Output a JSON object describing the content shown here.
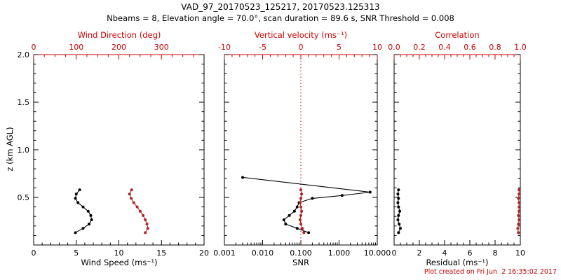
{
  "header": {
    "title": "VAD_97_20170523_125217, 20170523.125313",
    "subtitle": "Nbeams = 8, Elevation angle = 70.0°, scan duration = 89.6 s, SNR Threshold = 0.008"
  },
  "footer": {
    "created_text": "Plot created on Fri Jun  2 16:35:02 2017"
  },
  "colors": {
    "background": "#ffffff",
    "axis": "#000000",
    "secondary_axis": "#cc0000",
    "series_black": "#000000",
    "series_red": "#b22222"
  },
  "chart_data": [
    {
      "id": "wind",
      "type": "line",
      "y_axis": {
        "label": "z (km AGL)",
        "min": 0,
        "max": 2.0,
        "minor_step": 0.1,
        "tick_values": [
          0.5,
          1.0,
          1.5,
          2.0
        ],
        "tick_labels": [
          "0.5",
          "1.0",
          "1.5",
          "2.0"
        ],
        "show_tick_labels": true
      },
      "x_bottom": {
        "label": "Wind Speed (ms⁻¹)",
        "scale": "linear",
        "min": 0,
        "max": 20,
        "minor_step": 1,
        "tick_values": [
          0,
          5,
          10,
          15,
          20
        ],
        "tick_labels": [
          "0",
          "5",
          "10",
          "15",
          "20"
        ]
      },
      "x_top": {
        "label": "Wind Direction (deg)",
        "scale": "linear",
        "min": 0,
        "max": 400,
        "minor_step": 25,
        "color": "#cc0000",
        "tick_values": [
          0,
          100,
          200,
          300
        ],
        "tick_labels": [
          "0",
          "100",
          "200",
          "300"
        ]
      },
      "series": [
        {
          "name": "wind-speed",
          "axis": "bottom",
          "color": "#000000",
          "z": [
            0.13,
            0.175,
            0.22,
            0.265,
            0.31,
            0.355,
            0.4,
            0.445,
            0.49,
            0.535,
            0.58
          ],
          "values": [
            4.9,
            5.8,
            6.5,
            6.8,
            6.7,
            6.4,
            5.8,
            5.2,
            4.9,
            5.0,
            5.4
          ]
        },
        {
          "name": "wind-direction",
          "axis": "top",
          "color": "#b22222",
          "z": [
            0.13,
            0.175,
            0.22,
            0.265,
            0.31,
            0.355,
            0.4,
            0.445,
            0.49,
            0.535,
            0.58
          ],
          "values": [
            262,
            268,
            266,
            262,
            257,
            250,
            243,
            235,
            229,
            225,
            230
          ]
        }
      ]
    },
    {
      "id": "snr",
      "type": "line",
      "y_axis": {
        "label": "",
        "min": 0,
        "max": 2.0,
        "minor_step": 0.1,
        "tick_values": [
          0.5,
          1.0,
          1.5,
          2.0
        ],
        "tick_labels": [
          "0.5",
          "1.0",
          "1.5",
          "2.0"
        ],
        "show_tick_labels": false
      },
      "x_bottom": {
        "label": "SNR",
        "scale": "log",
        "min": 0.001,
        "max": 10,
        "tick_values": [
          0.001,
          0.01,
          0.1,
          1,
          10
        ],
        "tick_labels": [
          "0.001",
          "0.010",
          "0.100",
          "1.000",
          "10.000"
        ]
      },
      "x_top": {
        "label": "Vertical velocity (ms⁻¹)",
        "scale": "linear",
        "min": -10,
        "max": 10,
        "minor_step": 1,
        "color": "#cc0000",
        "tick_values": [
          -10,
          -5,
          0,
          5,
          10
        ],
        "tick_labels": [
          "-10",
          "-5",
          "0",
          "5",
          "10"
        ]
      },
      "reference_line": {
        "axis": "top",
        "value": 0,
        "color": "#cc0000",
        "style": "dotted"
      },
      "series": [
        {
          "name": "snr",
          "axis": "bottom",
          "color": "#000000",
          "z": [
            0.13,
            0.175,
            0.22,
            0.265,
            0.31,
            0.355,
            0.4,
            0.445,
            0.49,
            0.52,
            0.555,
            0.71
          ],
          "values": [
            0.16,
            0.08,
            0.04,
            0.036,
            0.05,
            0.068,
            0.08,
            0.09,
            0.2,
            1.2,
            6.5,
            0.003
          ]
        },
        {
          "name": "vertical-velocity",
          "axis": "top",
          "color": "#b22222",
          "z": [
            0.13,
            0.175,
            0.22,
            0.265,
            0.31,
            0.355,
            0.4,
            0.445,
            0.49,
            0.535,
            0.58
          ],
          "values": [
            0.4,
            0.2,
            0.0,
            -0.1,
            0.0,
            0.1,
            0.0,
            -0.1,
            0.0,
            0.1,
            0.0
          ]
        }
      ]
    },
    {
      "id": "residual",
      "type": "line",
      "y_axis": {
        "label": "",
        "min": 0,
        "max": 2.0,
        "minor_step": 0.1,
        "tick_values": [
          0.5,
          1.0,
          1.5,
          2.0
        ],
        "tick_labels": [
          "0.5",
          "1.0",
          "1.5",
          "2.0"
        ],
        "show_tick_labels": false
      },
      "x_bottom": {
        "label": "Residual (ms⁻¹)",
        "scale": "linear",
        "min": 0,
        "max": 10,
        "minor_step": 0.5,
        "tick_values": [
          0,
          2,
          4,
          6,
          8,
          10
        ],
        "tick_labels": [
          "0",
          "2",
          "4",
          "6",
          "8",
          "10"
        ]
      },
      "x_top": {
        "label": "Correlation",
        "scale": "linear",
        "min": 0,
        "max": 1,
        "minor_step": 0.05,
        "color": "#cc0000",
        "tick_values": [
          0,
          0.2,
          0.4,
          0.6,
          0.8,
          1.0
        ],
        "tick_labels": [
          "0.0",
          "0.2",
          "0.4",
          "0.6",
          "0.8",
          "1.0"
        ]
      },
      "series": [
        {
          "name": "residual",
          "axis": "bottom",
          "color": "#000000",
          "z": [
            0.13,
            0.175,
            0.22,
            0.265,
            0.31,
            0.355,
            0.4,
            0.445,
            0.49,
            0.535,
            0.58
          ],
          "values": [
            0.35,
            0.5,
            0.4,
            0.3,
            0.35,
            0.45,
            0.35,
            0.3,
            0.35,
            0.3,
            0.35
          ]
        },
        {
          "name": "correlation",
          "axis": "top",
          "color": "#b22222",
          "z": [
            0.13,
            0.175,
            0.22,
            0.265,
            0.31,
            0.355,
            0.4,
            0.445,
            0.49,
            0.535,
            0.58
          ],
          "values": [
            0.985,
            0.98,
            0.985,
            0.99,
            0.985,
            0.99,
            0.99,
            0.99,
            0.985,
            0.99,
            0.99
          ]
        }
      ]
    }
  ]
}
